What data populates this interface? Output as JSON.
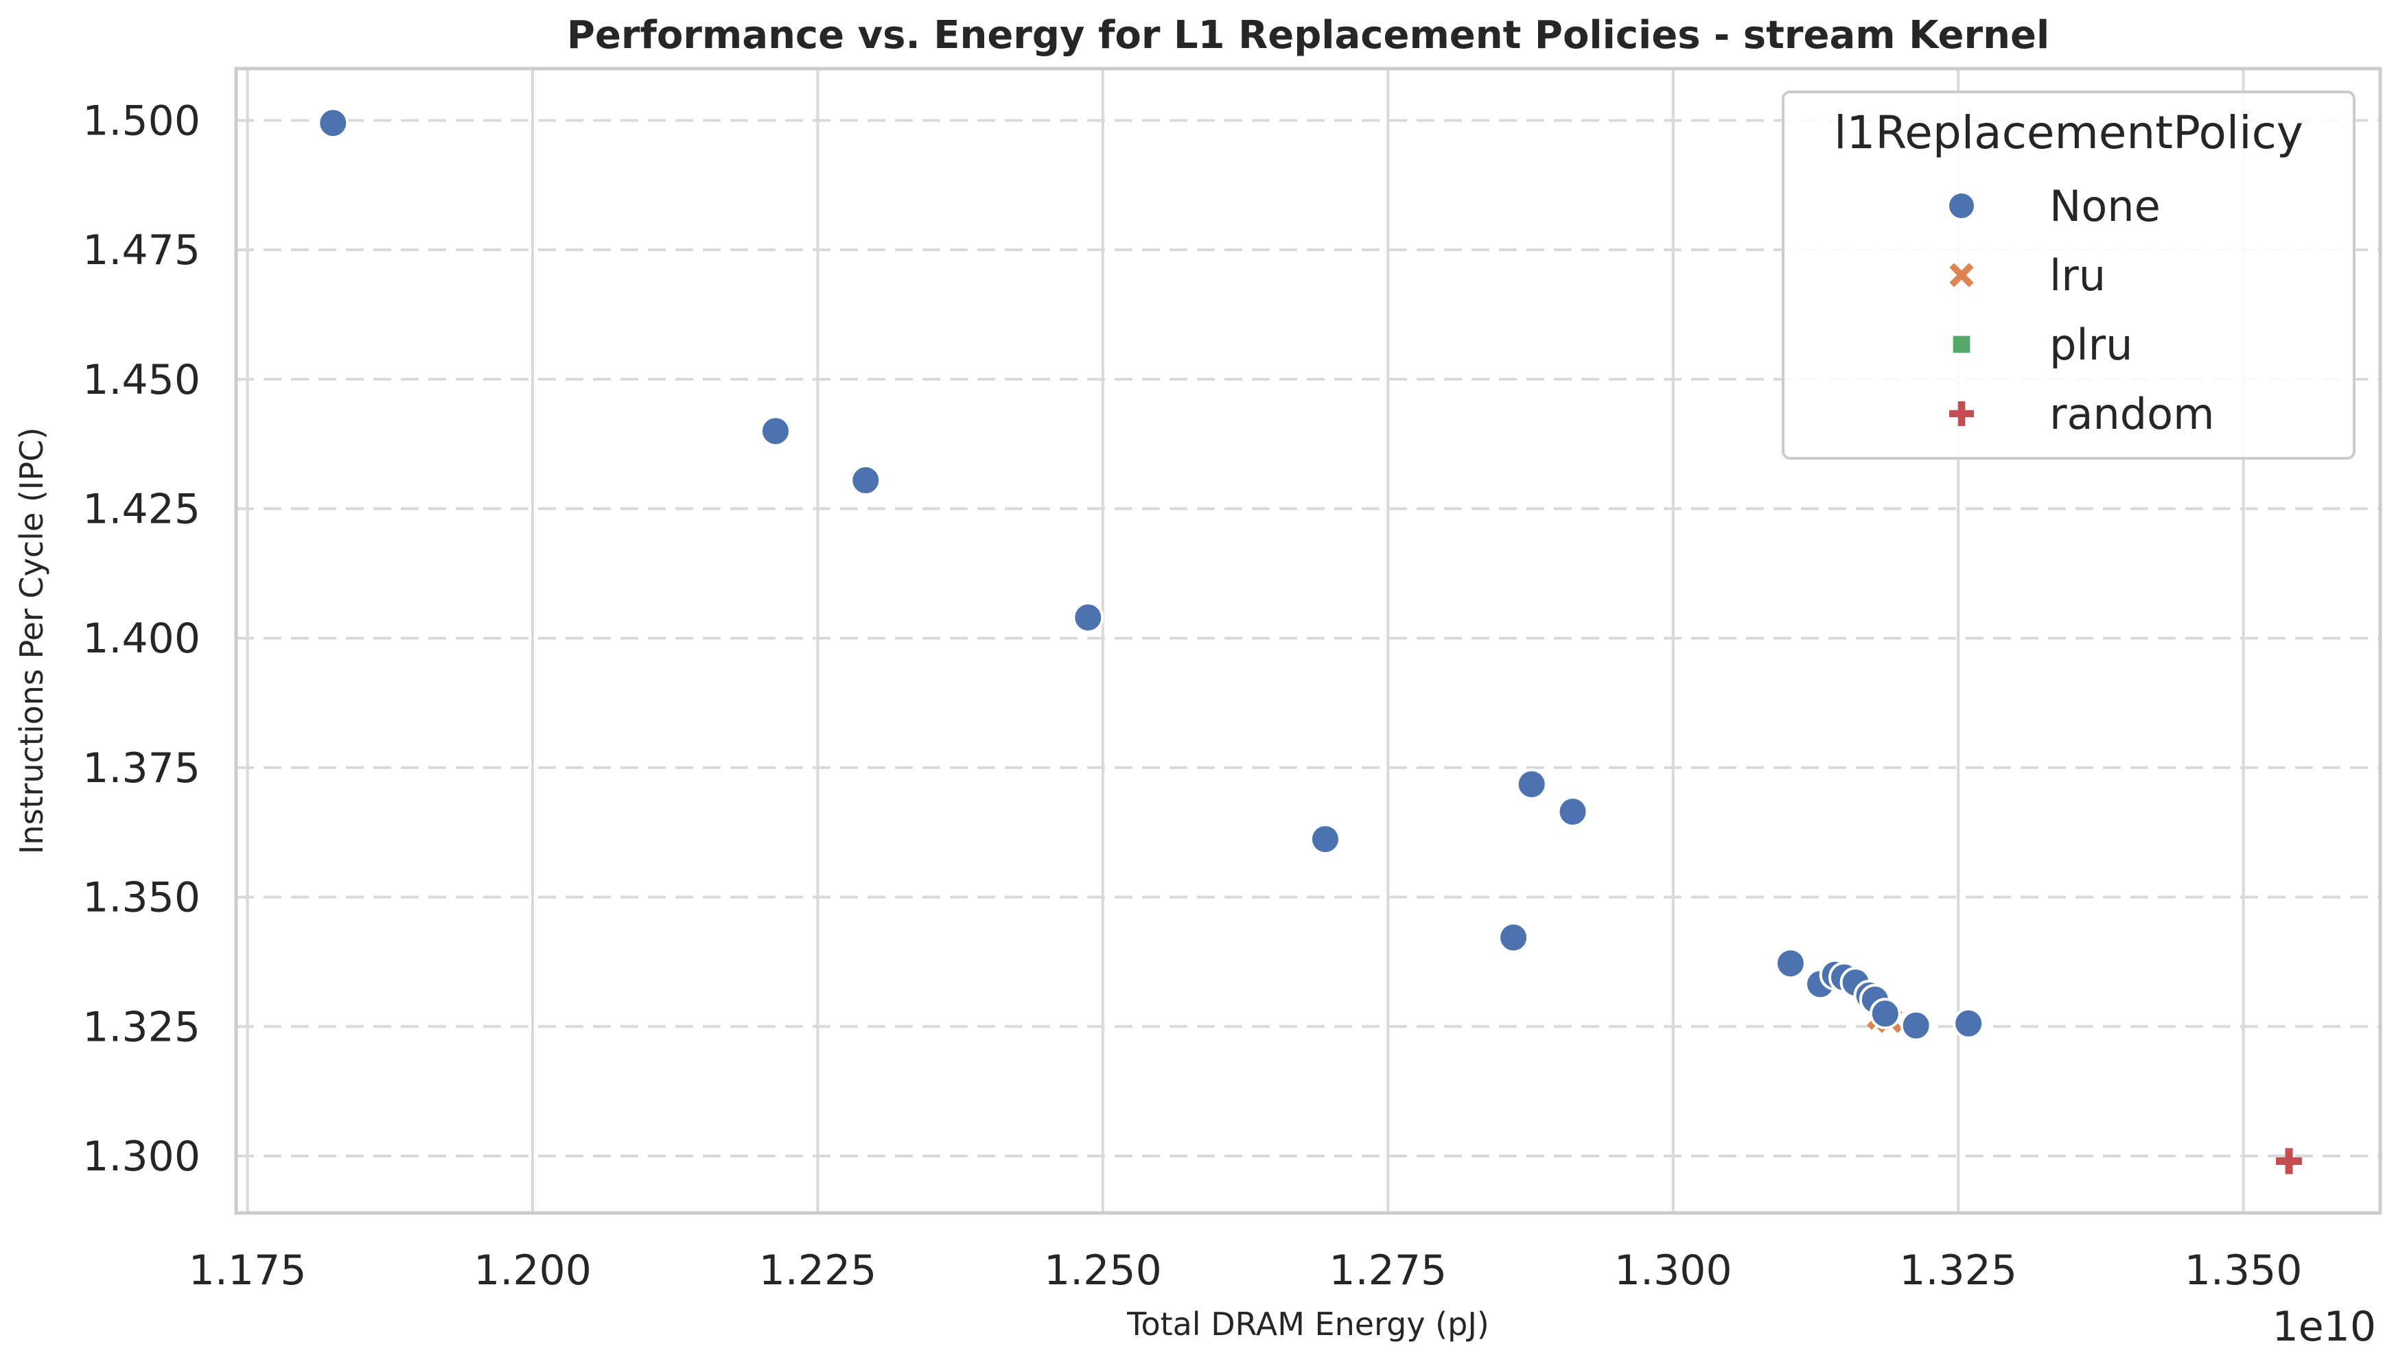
{
  "chart_data": {
    "type": "scatter",
    "title": "Performance vs. Energy for L1 Replacement Policies - stream Kernel",
    "xlabel": "Total DRAM Energy (pJ)",
    "ylabel": "Instructions Per Cycle (IPC)",
    "x_offset_text": "1e10",
    "x_tick_labels": [
      "1.175",
      "1.200",
      "1.225",
      "1.250",
      "1.275",
      "1.300",
      "1.325",
      "1.350"
    ],
    "y_tick_labels": [
      "1.300",
      "1.325",
      "1.350",
      "1.375",
      "1.400",
      "1.425",
      "1.450",
      "1.475",
      "1.500"
    ],
    "xlim": [
      11.74,
      13.62
    ],
    "ylim": [
      1.289,
      1.51
    ],
    "grid": true,
    "legend": {
      "title": "l1ReplacementPolicy",
      "placement": "top-right"
    },
    "series": [
      {
        "name": "None",
        "marker": "circle",
        "color": "#4c72b0",
        "points": [
          {
            "x": 11.825,
            "y": 1.4995
          },
          {
            "x": 12.213,
            "y": 1.44
          },
          {
            "x": 12.292,
            "y": 1.4305
          },
          {
            "x": 12.487,
            "y": 1.404
          },
          {
            "x": 12.695,
            "y": 1.3612
          },
          {
            "x": 12.86,
            "y": 1.3422
          },
          {
            "x": 12.876,
            "y": 1.3718
          },
          {
            "x": 12.912,
            "y": 1.3665
          },
          {
            "x": 13.103,
            "y": 1.3372
          },
          {
            "x": 13.129,
            "y": 1.3332
          },
          {
            "x": 13.142,
            "y": 1.335
          },
          {
            "x": 13.15,
            "y": 1.3345
          },
          {
            "x": 13.16,
            "y": 1.3335
          },
          {
            "x": 13.172,
            "y": 1.331
          },
          {
            "x": 13.177,
            "y": 1.3302
          },
          {
            "x": 13.186,
            "y": 1.3275
          },
          {
            "x": 13.213,
            "y": 1.3252
          },
          {
            "x": 13.259,
            "y": 1.3256
          }
        ]
      },
      {
        "name": "lru",
        "marker": "x",
        "color": "#dd8452",
        "points": [
          {
            "x": 13.181,
            "y": 1.3268
          },
          {
            "x": 13.19,
            "y": 1.3262
          }
        ]
      },
      {
        "name": "plru",
        "marker": "square",
        "color": "#55a868",
        "points": []
      },
      {
        "name": "random",
        "marker": "plus",
        "color": "#c44e52",
        "points": [
          {
            "x": 13.54,
            "y": 1.299
          }
        ]
      }
    ]
  }
}
